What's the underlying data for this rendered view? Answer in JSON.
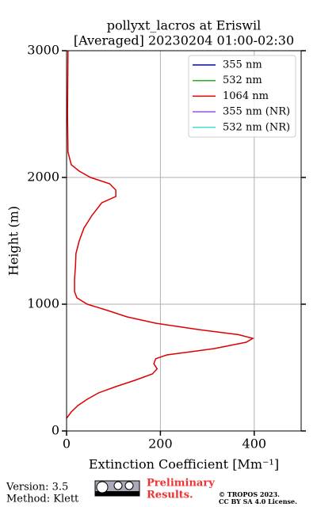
{
  "chart_data": {
    "type": "line",
    "title": "pollyxt_lacros at Eriswil",
    "subtitle": "[Averaged] 20230204 01:00-02:30",
    "xlabel": "Extinction Coefficient [Mm⁻¹]",
    "ylabel": "Height (m)",
    "xlim": [
      0,
      500
    ],
    "xticks": [
      0,
      200,
      400
    ],
    "ylim": [
      0,
      3000
    ],
    "yticks": [
      0,
      1000,
      2000,
      3000
    ],
    "grid": true,
    "legend": "upper right",
    "y": [
      100,
      150,
      200,
      250,
      300,
      350,
      400,
      450,
      490,
      530,
      570,
      600,
      650,
      700,
      730,
      760,
      800,
      850,
      900,
      950,
      1000,
      1050,
      1100,
      1200,
      1300,
      1400,
      1500,
      1600,
      1700,
      1800,
      1850,
      1900,
      1950,
      2000,
      2050,
      2100,
      2200,
      2500,
      3000
    ],
    "series": [
      {
        "name": "355 nm",
        "color": "#0000dd",
        "values": [
          null,
          null,
          null,
          null,
          null,
          null,
          null,
          null,
          null,
          null,
          null,
          null,
          null,
          null,
          null,
          null,
          null,
          null,
          null,
          null,
          null,
          null,
          null,
          null,
          null,
          null,
          null,
          null,
          null,
          null,
          null,
          null,
          null,
          null,
          null,
          null,
          null,
          null,
          null
        ]
      },
      {
        "name": "532 nm",
        "color": "#22b222",
        "values": [
          null,
          null,
          null,
          null,
          null,
          null,
          null,
          null,
          null,
          null,
          null,
          null,
          null,
          null,
          null,
          null,
          null,
          null,
          null,
          null,
          null,
          null,
          null,
          null,
          null,
          null,
          null,
          null,
          null,
          null,
          null,
          null,
          null,
          null,
          null,
          null,
          null,
          null,
          null
        ]
      },
      {
        "name": "1064 nm",
        "color": "#dd0000",
        "values": [
          0,
          10,
          24,
          44,
          68,
          105,
          146,
          183,
          193,
          186,
          190,
          214,
          315,
          383,
          397,
          366,
          281,
          190,
          129,
          88,
          44,
          22,
          17,
          17,
          19,
          20,
          27,
          37,
          54,
          75,
          105,
          105,
          92,
          51,
          27,
          10,
          3,
          2,
          3
        ]
      },
      {
        "name": "355 nm (NR)",
        "color": "#a050e0",
        "values": [
          null,
          null,
          null,
          null,
          null,
          null,
          null,
          null,
          null,
          null,
          null,
          null,
          null,
          null,
          null,
          null,
          null,
          null,
          null,
          null,
          null,
          null,
          null,
          null,
          null,
          null,
          null,
          null,
          null,
          null,
          null,
          null,
          null,
          null,
          null,
          null,
          null,
          null,
          null
        ]
      },
      {
        "name": "532 nm (NR)",
        "color": "#40e0d0",
        "values": [
          null,
          null,
          null,
          null,
          null,
          null,
          null,
          null,
          null,
          null,
          null,
          null,
          null,
          null,
          null,
          null,
          null,
          null,
          null,
          null,
          null,
          null,
          null,
          null,
          null,
          null,
          null,
          null,
          null,
          null,
          null,
          null,
          null,
          null,
          null,
          null,
          null,
          null,
          null
        ]
      }
    ]
  },
  "footer": {
    "version": "Version: 3.5",
    "method": "Method: Klett",
    "preliminary": [
      "Preliminary",
      "Results."
    ],
    "copyright": [
      "© TROPOS 2023.",
      "CC BY SA 4.0 License."
    ]
  }
}
